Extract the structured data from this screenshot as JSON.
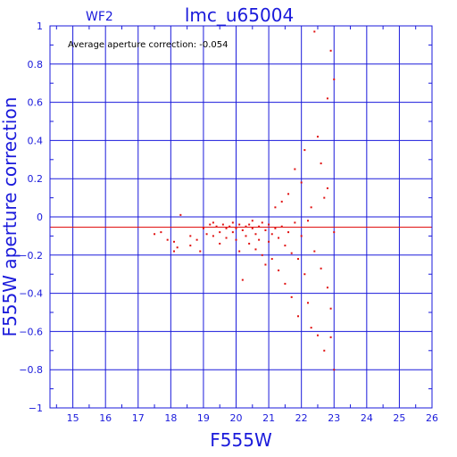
{
  "chart_data": {
    "type": "scatter",
    "title": "lmc_u65004",
    "chip_label": "WF2",
    "annotation": "Average aperture correction:  -0.054",
    "xlabel": "F555W",
    "ylabel": "F555W aperture correction",
    "xlim": [
      14.3,
      26.0
    ],
    "ylim": [
      -1.0,
      1.0
    ],
    "x_ticks": [
      15,
      16,
      17,
      18,
      19,
      20,
      21,
      22,
      23,
      24,
      25,
      26
    ],
    "y_ticks": [
      -1,
      -0.8,
      -0.6,
      -0.4,
      -0.2,
      0,
      0.2,
      0.4,
      0.6,
      0.8,
      1
    ],
    "x_tick_labels": [
      "15",
      "16",
      "17",
      "18",
      "19",
      "20",
      "21",
      "22",
      "23",
      "24",
      "25",
      "26"
    ],
    "y_tick_labels": [
      "−1",
      "−0.8",
      "−0.6",
      "−0.4",
      "−0.2",
      "0",
      "0.2",
      "0.4",
      "0.6",
      "0.8",
      "1"
    ],
    "average_line": -0.054,
    "grid": true,
    "colors": {
      "axes": "#1a1adb",
      "points": "#e01010",
      "average_line": "#e01010"
    },
    "points_description": "bright stars near -0.05 spreading upward/downward for fainter magnitudes",
    "points": [
      [
        17.5,
        -0.09
      ],
      [
        17.7,
        -0.08
      ],
      [
        17.9,
        -0.12
      ],
      [
        18.1,
        -0.13
      ],
      [
        18.1,
        -0.18
      ],
      [
        18.2,
        -0.16
      ],
      [
        18.3,
        0.01
      ],
      [
        18.6,
        -0.1
      ],
      [
        18.6,
        -0.15
      ],
      [
        18.8,
        -0.12
      ],
      [
        18.9,
        -0.18
      ],
      [
        19.0,
        -0.06
      ],
      [
        19.1,
        -0.09
      ],
      [
        19.2,
        -0.04
      ],
      [
        19.3,
        -0.03
      ],
      [
        19.3,
        -0.1
      ],
      [
        19.4,
        -0.05
      ],
      [
        19.5,
        -0.08
      ],
      [
        19.5,
        -0.14
      ],
      [
        19.6,
        -0.04
      ],
      [
        19.7,
        -0.06
      ],
      [
        19.7,
        -0.11
      ],
      [
        19.8,
        -0.05
      ],
      [
        19.9,
        -0.08
      ],
      [
        19.9,
        -0.03
      ],
      [
        20.0,
        -0.06
      ],
      [
        20.0,
        -0.12
      ],
      [
        20.1,
        -0.04
      ],
      [
        20.1,
        -0.18
      ],
      [
        20.2,
        -0.07
      ],
      [
        20.2,
        -0.33
      ],
      [
        20.3,
        -0.05
      ],
      [
        20.3,
        -0.1
      ],
      [
        20.4,
        -0.04
      ],
      [
        20.4,
        -0.14
      ],
      [
        20.5,
        -0.06
      ],
      [
        20.5,
        -0.02
      ],
      [
        20.6,
        -0.09
      ],
      [
        20.6,
        -0.17
      ],
      [
        20.7,
        -0.05
      ],
      [
        20.7,
        -0.12
      ],
      [
        20.8,
        -0.03
      ],
      [
        20.8,
        -0.2
      ],
      [
        20.9,
        -0.07
      ],
      [
        20.9,
        -0.25
      ],
      [
        21.0,
        -0.04
      ],
      [
        21.0,
        -0.13
      ],
      [
        21.1,
        -0.09
      ],
      [
        21.1,
        -0.22
      ],
      [
        21.2,
        -0.06
      ],
      [
        21.2,
        0.05
      ],
      [
        21.3,
        -0.11
      ],
      [
        21.3,
        -0.28
      ],
      [
        21.4,
        -0.05
      ],
      [
        21.4,
        0.08
      ],
      [
        21.5,
        -0.15
      ],
      [
        21.5,
        -0.35
      ],
      [
        21.6,
        -0.08
      ],
      [
        21.6,
        0.12
      ],
      [
        21.7,
        -0.19
      ],
      [
        21.7,
        -0.42
      ],
      [
        21.8,
        -0.03
      ],
      [
        21.8,
        0.25
      ],
      [
        21.9,
        -0.22
      ],
      [
        21.9,
        -0.52
      ],
      [
        22.0,
        -0.1
      ],
      [
        22.0,
        0.18
      ],
      [
        22.1,
        -0.3
      ],
      [
        22.1,
        0.35
      ],
      [
        22.2,
        -0.45
      ],
      [
        22.2,
        -0.02
      ],
      [
        22.3,
        -0.58
      ],
      [
        22.3,
        0.05
      ],
      [
        22.4,
        -0.18
      ],
      [
        22.4,
        0.97
      ],
      [
        22.5,
        -0.62
      ],
      [
        22.5,
        0.42
      ],
      [
        22.6,
        -0.27
      ],
      [
        22.6,
        0.28
      ],
      [
        22.7,
        -0.7
      ],
      [
        22.7,
        0.1
      ],
      [
        22.8,
        -0.37
      ],
      [
        22.8,
        0.62
      ],
      [
        22.9,
        -0.48
      ],
      [
        22.9,
        0.87
      ],
      [
        23.0,
        -0.08
      ],
      [
        23.0,
        0.72
      ],
      [
        23.0,
        -0.8
      ],
      [
        22.9,
        -0.63
      ],
      [
        22.8,
        0.15
      ]
    ]
  }
}
